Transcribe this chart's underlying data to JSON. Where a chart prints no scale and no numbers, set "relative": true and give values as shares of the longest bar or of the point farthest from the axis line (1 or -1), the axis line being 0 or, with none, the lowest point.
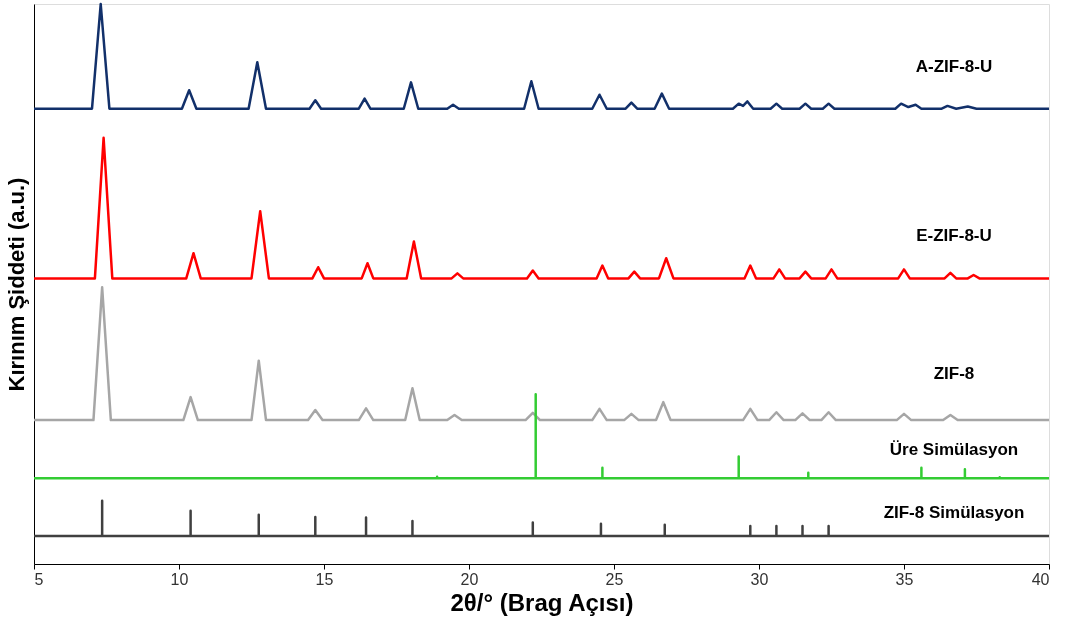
{
  "chart_data": {
    "type": "line",
    "relative": true,
    "xlabel": "2θ/° (Brag Açısı)",
    "ylabel": "Kırınım Şiddeti (a.u.)",
    "xlim": [
      5,
      40
    ],
    "xticks": [
      5,
      10,
      15,
      20,
      25,
      30,
      35,
      40
    ],
    "series": [
      {
        "name": "A-ZIF-8-U",
        "color": "#12306a",
        "x": [
          5,
          7.0,
          7.3,
          7.6,
          10.1,
          10.35,
          10.6,
          12.4,
          12.7,
          13.0,
          14.5,
          14.7,
          14.9,
          16.2,
          16.4,
          16.6,
          17.75,
          18.0,
          18.25,
          19.25,
          19.45,
          19.65,
          21.9,
          22.15,
          22.4,
          24.25,
          24.5,
          24.75,
          25.4,
          25.6,
          25.8,
          26.4,
          26.65,
          26.9,
          29.1,
          29.3,
          29.45,
          29.6,
          29.8,
          30.4,
          30.6,
          30.8,
          31.4,
          31.6,
          31.8,
          32.2,
          32.4,
          32.6,
          34.7,
          34.9,
          35.15,
          35.4,
          35.6,
          36.3,
          36.5,
          36.8,
          37.2,
          37.5,
          40
        ],
        "values": [
          0.813,
          0.813,
          1.0,
          0.813,
          0.813,
          0.846,
          0.813,
          0.813,
          0.896,
          0.813,
          0.813,
          0.828,
          0.813,
          0.813,
          0.831,
          0.813,
          0.813,
          0.86,
          0.813,
          0.813,
          0.82,
          0.813,
          0.813,
          0.862,
          0.813,
          0.813,
          0.838,
          0.813,
          0.813,
          0.824,
          0.813,
          0.813,
          0.84,
          0.813,
          0.813,
          0.822,
          0.818,
          0.826,
          0.813,
          0.813,
          0.822,
          0.813,
          0.813,
          0.822,
          0.813,
          0.813,
          0.822,
          0.813,
          0.813,
          0.822,
          0.816,
          0.82,
          0.813,
          0.813,
          0.818,
          0.813,
          0.817,
          0.813,
          0.813
        ]
      },
      {
        "name": "E-ZIF-8-U",
        "color": "#ff0000",
        "x": [
          5,
          7.1,
          7.4,
          7.7,
          10.25,
          10.5,
          10.75,
          12.5,
          12.8,
          13.1,
          14.6,
          14.8,
          15.0,
          16.3,
          16.5,
          16.7,
          17.85,
          18.1,
          18.35,
          19.4,
          19.6,
          19.8,
          22.0,
          22.2,
          22.4,
          24.4,
          24.6,
          24.8,
          25.5,
          25.7,
          25.9,
          26.55,
          26.8,
          27.05,
          29.5,
          29.7,
          29.9,
          30.5,
          30.7,
          30.9,
          31.4,
          31.6,
          31.8,
          32.3,
          32.5,
          32.7,
          34.8,
          35.0,
          35.2,
          36.4,
          36.6,
          36.8,
          37.2,
          37.4,
          37.6,
          40
        ],
        "values": [
          0.51,
          0.51,
          0.761,
          0.51,
          0.51,
          0.555,
          0.51,
          0.51,
          0.63,
          0.51,
          0.51,
          0.53,
          0.51,
          0.51,
          0.537,
          0.51,
          0.51,
          0.576,
          0.51,
          0.51,
          0.519,
          0.51,
          0.51,
          0.524,
          0.51,
          0.51,
          0.533,
          0.51,
          0.51,
          0.522,
          0.51,
          0.51,
          0.546,
          0.51,
          0.51,
          0.533,
          0.51,
          0.51,
          0.526,
          0.51,
          0.51,
          0.522,
          0.51,
          0.51,
          0.526,
          0.51,
          0.51,
          0.526,
          0.51,
          0.51,
          0.52,
          0.51,
          0.51,
          0.516,
          0.51,
          0.51
        ]
      },
      {
        "name": "ZIF-8",
        "color": "#a6a6a6",
        "x": [
          5,
          7.05,
          7.35,
          7.65,
          10.15,
          10.4,
          10.65,
          12.5,
          12.75,
          13.0,
          14.45,
          14.7,
          14.95,
          16.2,
          16.45,
          16.7,
          17.8,
          18.05,
          18.3,
          19.25,
          19.5,
          19.75,
          21.95,
          22.2,
          22.45,
          24.25,
          24.5,
          24.75,
          25.35,
          25.6,
          25.85,
          26.45,
          26.7,
          26.95,
          29.45,
          29.7,
          29.95,
          30.35,
          30.6,
          30.85,
          31.25,
          31.5,
          31.75,
          32.15,
          32.4,
          32.65,
          34.75,
          35.0,
          35.25,
          36.35,
          36.6,
          36.85,
          40
        ],
        "values": [
          0.257,
          0.257,
          0.494,
          0.257,
          0.257,
          0.298,
          0.257,
          0.257,
          0.363,
          0.257,
          0.257,
          0.275,
          0.257,
          0.257,
          0.278,
          0.257,
          0.257,
          0.314,
          0.257,
          0.257,
          0.266,
          0.257,
          0.257,
          0.27,
          0.257,
          0.257,
          0.277,
          0.257,
          0.257,
          0.268,
          0.257,
          0.257,
          0.289,
          0.257,
          0.257,
          0.277,
          0.257,
          0.257,
          0.271,
          0.257,
          0.257,
          0.269,
          0.257,
          0.257,
          0.271,
          0.257,
          0.257,
          0.268,
          0.257,
          0.257,
          0.266,
          0.257,
          0.257
        ]
      },
      {
        "name": "Üre Simülasyon",
        "color": "#33cc33",
        "x": [
          5,
          18.9,
          18.9,
          18.9,
          22.3,
          22.3,
          22.3,
          24.6,
          24.6,
          24.6,
          29.3,
          29.3,
          29.3,
          31.7,
          31.7,
          31.7,
          35.6,
          35.6,
          35.6,
          37.1,
          37.1,
          37.1,
          38.3,
          38.3,
          38.3,
          40
        ],
        "values": [
          0.153,
          0.153,
          0.156,
          0.153,
          0.153,
          0.303,
          0.153,
          0.153,
          0.172,
          0.153,
          0.153,
          0.192,
          0.153,
          0.153,
          0.163,
          0.153,
          0.153,
          0.172,
          0.153,
          0.153,
          0.169,
          0.153,
          0.153,
          0.155,
          0.153,
          0.153
        ]
      },
      {
        "name": "ZIF-8 Simülasyon",
        "color": "#404040",
        "x": [
          5,
          7.35,
          7.35,
          7.35,
          10.4,
          10.4,
          10.4,
          12.75,
          12.75,
          12.75,
          14.7,
          14.7,
          14.7,
          16.45,
          16.45,
          16.45,
          18.05,
          18.05,
          18.05,
          22.2,
          22.2,
          22.2,
          24.55,
          24.55,
          24.55,
          26.75,
          26.75,
          26.75,
          29.7,
          29.7,
          29.7,
          30.6,
          30.6,
          30.6,
          31.5,
          31.5,
          31.5,
          32.4,
          32.4,
          32.4,
          40
        ],
        "values": [
          0.05,
          0.05,
          0.113,
          0.05,
          0.05,
          0.095,
          0.05,
          0.05,
          0.088,
          0.05,
          0.05,
          0.084,
          0.05,
          0.05,
          0.083,
          0.05,
          0.05,
          0.077,
          0.05,
          0.05,
          0.074,
          0.05,
          0.05,
          0.072,
          0.05,
          0.05,
          0.07,
          0.05,
          0.05,
          0.068,
          0.05,
          0.05,
          0.068,
          0.05,
          0.05,
          0.068,
          0.05,
          0.05,
          0.068,
          0.05,
          0.05
        ]
      }
    ]
  }
}
